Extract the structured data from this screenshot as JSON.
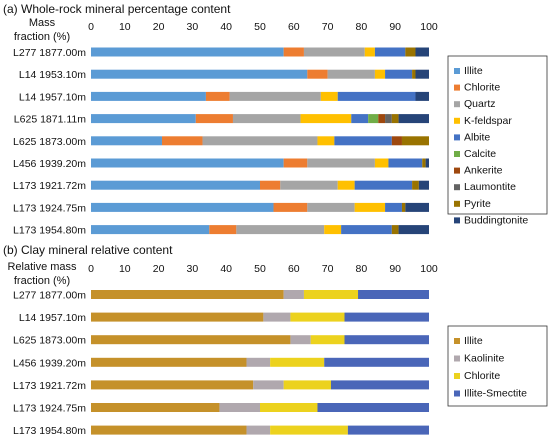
{
  "chart_data": [
    {
      "type": "bar",
      "orientation": "horizontal",
      "stacked": true,
      "title": "(a) Whole-rock mineral percentage content",
      "axis_label": [
        "Mass",
        "fraction (%)"
      ],
      "xlim": [
        0,
        100
      ],
      "ticks": [
        "0",
        "10",
        "20",
        "30",
        "40",
        "50",
        "60",
        "70",
        "80",
        "90",
        "100"
      ],
      "grid": false,
      "legend_position": "right",
      "categories": [
        "L277 1877.00m",
        "L14 1953.10m",
        "L14 1957.10m",
        "L625 1871.11m",
        "L625 1873.00m",
        "L456 1939.20m",
        "L173 1921.72m",
        "L173 1924.75m",
        "L173 1954.80m"
      ],
      "series": [
        {
          "name": "Illite",
          "color": "#5b9bd5",
          "values": [
            57,
            64,
            34,
            31,
            21,
            57,
            50,
            54,
            35
          ]
        },
        {
          "name": "Chlorite",
          "color": "#ed7d31",
          "values": [
            6,
            6,
            7,
            11,
            12,
            7,
            6,
            10,
            8
          ]
        },
        {
          "name": "Quartz",
          "color": "#a5a5a5",
          "values": [
            18,
            14,
            27,
            20,
            34,
            20,
            17,
            14,
            26
          ]
        },
        {
          "name": "K-feldspar",
          "color": "#ffc000",
          "values": [
            3,
            3,
            5,
            15,
            5,
            4,
            5,
            9,
            5
          ]
        },
        {
          "name": "Albite",
          "color": "#4472c4",
          "values": [
            9,
            8,
            23,
            5,
            17,
            10,
            17,
            5,
            15
          ]
        },
        {
          "name": "Calcite",
          "color": "#70ad47",
          "values": [
            0,
            0,
            0,
            3,
            0,
            0,
            0,
            0,
            0
          ]
        },
        {
          "name": "Ankerite",
          "color": "#9e480e",
          "values": [
            0,
            0,
            0,
            2,
            3,
            0,
            0,
            0,
            0
          ]
        },
        {
          "name": "Laumontite",
          "color": "#636363",
          "values": [
            0,
            0,
            0,
            2,
            0,
            0,
            0,
            0,
            0
          ]
        },
        {
          "name": "Pyrite",
          "color": "#997300",
          "values": [
            3,
            1,
            0,
            2,
            8,
            1,
            2,
            1,
            2
          ]
        },
        {
          "name": "Buddingtonite",
          "color": "#264478",
          "values": [
            4,
            4,
            4,
            9,
            0,
            1,
            3,
            7,
            9
          ]
        }
      ]
    },
    {
      "type": "bar",
      "orientation": "horizontal",
      "stacked": true,
      "title": "(b) Clay mineral relative content",
      "axis_label": [
        "Relative mass",
        "fraction (%)"
      ],
      "xlim": [
        0,
        100
      ],
      "ticks": [
        "0",
        "10",
        "20",
        "30",
        "40",
        "50",
        "60",
        "70",
        "80",
        "90",
        "100"
      ],
      "grid": false,
      "legend_position": "right",
      "categories": [
        "L277 1877.00m",
        "L14 1957.10m",
        "L625 1873.00m",
        "L456 1939.20m",
        "L173 1921.72m",
        "L173 1924.75m",
        "L173 1954.80m"
      ],
      "series": [
        {
          "name": "Illite",
          "color": "#c5912a",
          "values": [
            57,
            51,
            59,
            46,
            48,
            38,
            46
          ]
        },
        {
          "name": "Kaolinite",
          "color": "#b0a8ae",
          "values": [
            6,
            8,
            6,
            7,
            9,
            12,
            7
          ]
        },
        {
          "name": "Chlorite",
          "color": "#ecd21e",
          "values": [
            16,
            16,
            10,
            16,
            14,
            17,
            23
          ]
        },
        {
          "name": "Illite-Smectite",
          "color": "#4a66b8",
          "values": [
            21,
            25,
            25,
            31,
            29,
            33,
            24
          ]
        }
      ]
    }
  ]
}
